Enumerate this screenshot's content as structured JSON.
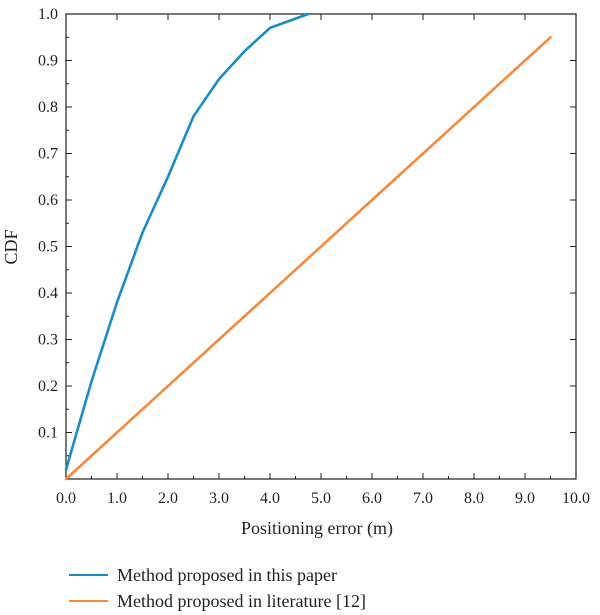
{
  "chart_data": {
    "type": "line",
    "title": "",
    "xlabel": "Positioning error (m)",
    "ylabel": "CDF",
    "xlim": [
      0,
      10
    ],
    "ylim": [
      0,
      1
    ],
    "x_ticks": [
      0,
      1,
      2,
      3,
      4,
      5,
      6,
      7,
      8,
      9,
      10
    ],
    "x_tick_labels": [
      "0.0",
      "1.0",
      "2.0",
      "3.0",
      "4.0",
      "5.0",
      "6.0",
      "7.0",
      "8.0",
      "9.0",
      "10.0"
    ],
    "y_ticks": [
      0.1,
      0.2,
      0.3,
      0.4,
      0.5,
      0.6,
      0.7,
      0.8,
      0.9,
      1.0
    ],
    "y_tick_labels": [
      "0.1",
      "0.2",
      "0.3",
      "0.4",
      "0.5",
      "0.6",
      "0.7",
      "0.8",
      "0.9",
      "1.0"
    ],
    "grid": false,
    "legend_position": "bottom",
    "series": [
      {
        "name": "Method proposed in this paper",
        "color": "#1a8cc6",
        "x": [
          0.0,
          0.5,
          1.0,
          1.5,
          2.0,
          2.5,
          3.0,
          3.5,
          4.0,
          4.5,
          4.75
        ],
        "y": [
          0.02,
          0.21,
          0.38,
          0.53,
          0.65,
          0.78,
          0.86,
          0.92,
          0.97,
          0.99,
          1.0
        ]
      },
      {
        "name": "Method proposed in literature [12]",
        "color": "#f58a3c",
        "x": [
          0.0,
          9.5
        ],
        "y": [
          0.0,
          0.95
        ]
      }
    ]
  }
}
